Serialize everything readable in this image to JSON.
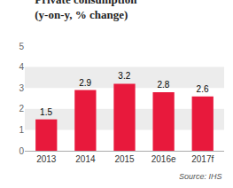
{
  "chart_data": {
    "type": "bar",
    "title": "Private consumption",
    "subtitle": "(y-on-y, % change)",
    "categories": [
      "2013",
      "2014",
      "2015",
      "2016e",
      "2017f"
    ],
    "values": [
      1.5,
      2.9,
      3.2,
      2.8,
      2.6
    ],
    "color": "#e8193c",
    "ylim": [
      0,
      5
    ],
    "yticks": [
      0,
      1,
      2,
      3,
      4,
      5
    ],
    "grid": false,
    "data_labels": true,
    "annotations": [
      "Source: IHS"
    ]
  }
}
